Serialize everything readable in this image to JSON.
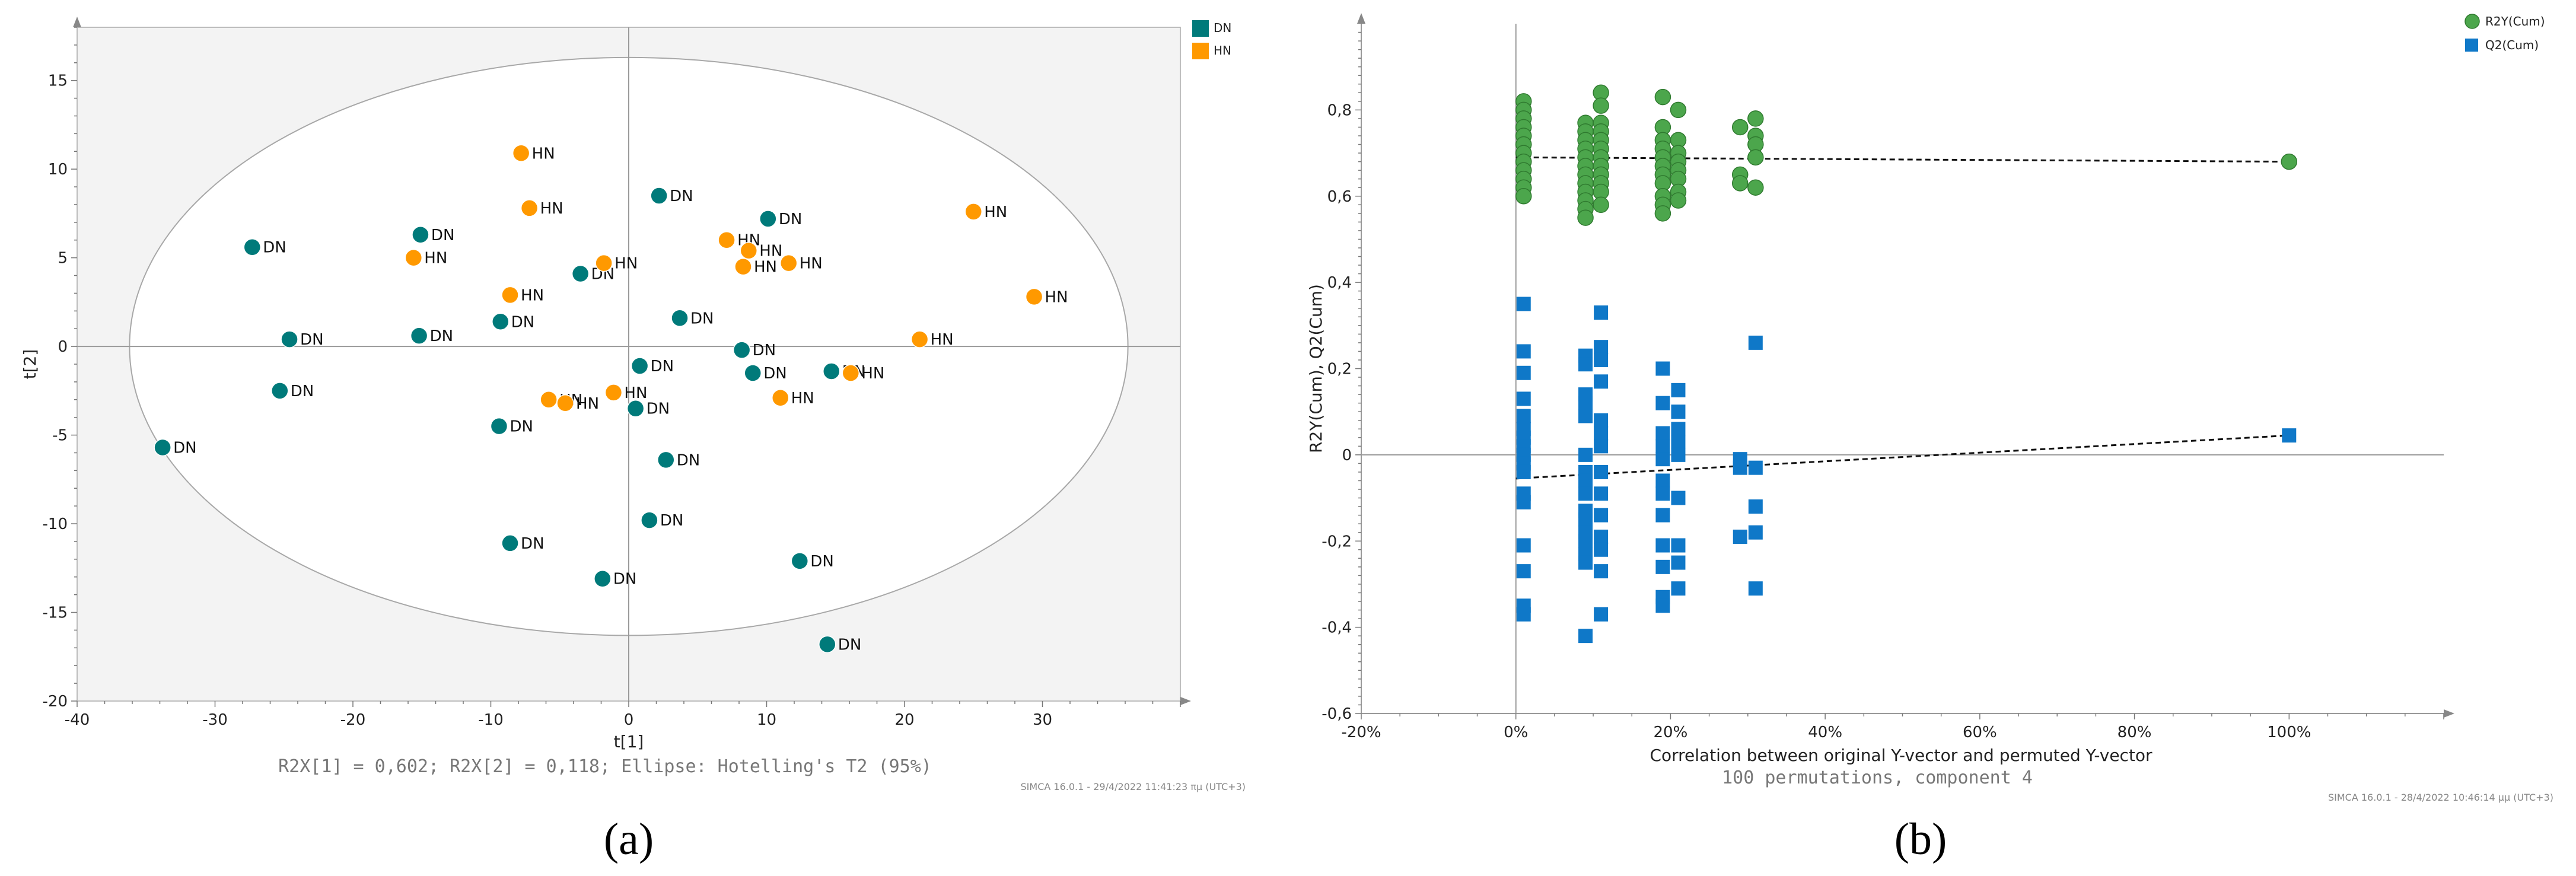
{
  "chart_data": [
    {
      "panel_label": "(a)",
      "type": "scatter",
      "xlabel": "t[1]",
      "ylabel": "t[2]",
      "xlim": [
        -40,
        40
      ],
      "ylim": [
        -20,
        18
      ],
      "xticks": [
        -40,
        -30,
        -20,
        -10,
        0,
        10,
        20,
        30
      ],
      "yticks": [
        -20,
        -15,
        -10,
        -5,
        0,
        5,
        10,
        15
      ],
      "note": "R2X[1] = 0,602; R2X[2] = 0,118; Ellipse: Hotelling's T2 (95%)",
      "stamp": "SIMCA 16.0.1 - 29/4/2022 11:41:23 πμ (UTC+3)",
      "ellipse": {
        "cx": 0,
        "cy": 0,
        "rx": 36.2,
        "ry": 16.3
      },
      "legend": [
        {
          "name": "DN",
          "color": "#007a7a"
        },
        {
          "name": "HN",
          "color": "#ff9900"
        }
      ],
      "series": [
        {
          "name": "DN",
          "color": "#007a7a",
          "points": [
            [
              -27.3,
              5.6
            ],
            [
              -15.1,
              6.3
            ],
            [
              -24.6,
              0.4
            ],
            [
              -15.2,
              0.6
            ],
            [
              -25.3,
              -2.5
            ],
            [
              -33.8,
              -5.7
            ],
            [
              -9.3,
              1.4
            ],
            [
              -9.4,
              -4.5
            ],
            [
              -8.6,
              -11.1
            ],
            [
              -3.5,
              4.1
            ],
            [
              2.2,
              8.5
            ],
            [
              10.1,
              7.2
            ],
            [
              3.7,
              1.6
            ],
            [
              8.2,
              -0.2
            ],
            [
              9.0,
              -1.5
            ],
            [
              0.8,
              -1.1
            ],
            [
              0.5,
              -3.5
            ],
            [
              14.7,
              -1.4
            ],
            [
              2.7,
              -6.4
            ],
            [
              1.5,
              -9.8
            ],
            [
              -1.9,
              -13.1
            ],
            [
              12.4,
              -12.1
            ],
            [
              14.4,
              -16.8
            ]
          ]
        },
        {
          "name": "HN",
          "color": "#ff9900",
          "points": [
            [
              -7.8,
              10.9
            ],
            [
              -7.2,
              7.8
            ],
            [
              -15.6,
              5.0
            ],
            [
              -8.6,
              2.9
            ],
            [
              -1.8,
              4.7
            ],
            [
              7.1,
              6.0
            ],
            [
              8.7,
              5.4
            ],
            [
              8.3,
              4.5
            ],
            [
              11.6,
              4.7
            ],
            [
              25.0,
              7.6
            ],
            [
              29.4,
              2.8
            ],
            [
              21.1,
              0.4
            ],
            [
              16.1,
              -1.5
            ],
            [
              11.0,
              -2.9
            ],
            [
              -5.8,
              -3.0
            ],
            [
              -4.6,
              -3.2
            ],
            [
              -1.1,
              -2.6
            ]
          ]
        }
      ]
    },
    {
      "panel_label": "(b)",
      "type": "scatter",
      "xlabel": "Correlation between original Y-vector and permuted Y-vector",
      "ylabel": "R2Y(Cum), Q2(Cum)",
      "xlim": [
        -0.2,
        1.2
      ],
      "ylim": [
        -0.6,
        1.0
      ],
      "xticks": [
        "-20%",
        "0%",
        "20%",
        "40%",
        "60%",
        "80%",
        "100%"
      ],
      "yticks": [
        "-0,6",
        "-0,4",
        "-0,2",
        "0",
        "0,2",
        "0,4",
        "0,6",
        "0,8"
      ],
      "note": "100 permutations, component 4",
      "stamp": "SIMCA 16.0.1 - 28/4/2022 10:46:14 μμ (UTC+3)",
      "legend": [
        {
          "name": "R2Y(Cum)",
          "color": "#4ca64c",
          "shape": "circle"
        },
        {
          "name": "Q2(Cum)",
          "color": "#0f78c8",
          "shape": "square"
        }
      ],
      "series": [
        {
          "name": "R2Y(Cum)",
          "color": "#4ca64c",
          "shape": "circle",
          "regression": [
            [
              0,
              0.69
            ],
            [
              1.0,
              0.68
            ]
          ],
          "points": [
            [
              0.01,
              0.82
            ],
            [
              0.01,
              0.8
            ],
            [
              0.01,
              0.78
            ],
            [
              0.01,
              0.76
            ],
            [
              0.01,
              0.74
            ],
            [
              0.01,
              0.72
            ],
            [
              0.01,
              0.7
            ],
            [
              0.01,
              0.68
            ],
            [
              0.01,
              0.66
            ],
            [
              0.01,
              0.64
            ],
            [
              0.01,
              0.62
            ],
            [
              0.01,
              0.6
            ],
            [
              0.09,
              0.77
            ],
            [
              0.09,
              0.75
            ],
            [
              0.09,
              0.73
            ],
            [
              0.09,
              0.71
            ],
            [
              0.09,
              0.69
            ],
            [
              0.09,
              0.67
            ],
            [
              0.09,
              0.65
            ],
            [
              0.09,
              0.63
            ],
            [
              0.09,
              0.61
            ],
            [
              0.09,
              0.59
            ],
            [
              0.09,
              0.57
            ],
            [
              0.09,
              0.55
            ],
            [
              0.11,
              0.84
            ],
            [
              0.11,
              0.81
            ],
            [
              0.11,
              0.77
            ],
            [
              0.11,
              0.75
            ],
            [
              0.11,
              0.73
            ],
            [
              0.11,
              0.71
            ],
            [
              0.11,
              0.69
            ],
            [
              0.11,
              0.67
            ],
            [
              0.11,
              0.65
            ],
            [
              0.11,
              0.63
            ],
            [
              0.11,
              0.61
            ],
            [
              0.11,
              0.58
            ],
            [
              0.19,
              0.83
            ],
            [
              0.19,
              0.76
            ],
            [
              0.19,
              0.73
            ],
            [
              0.19,
              0.71
            ],
            [
              0.19,
              0.69
            ],
            [
              0.19,
              0.67
            ],
            [
              0.19,
              0.65
            ],
            [
              0.19,
              0.63
            ],
            [
              0.19,
              0.6
            ],
            [
              0.19,
              0.58
            ],
            [
              0.19,
              0.56
            ],
            [
              0.21,
              0.8
            ],
            [
              0.21,
              0.73
            ],
            [
              0.21,
              0.7
            ],
            [
              0.21,
              0.68
            ],
            [
              0.21,
              0.66
            ],
            [
              0.21,
              0.64
            ],
            [
              0.21,
              0.61
            ],
            [
              0.21,
              0.59
            ],
            [
              0.29,
              0.76
            ],
            [
              0.29,
              0.65
            ],
            [
              0.29,
              0.63
            ],
            [
              0.31,
              0.78
            ],
            [
              0.31,
              0.74
            ],
            [
              0.31,
              0.72
            ],
            [
              0.31,
              0.69
            ],
            [
              0.31,
              0.62
            ],
            [
              1.0,
              0.68
            ]
          ]
        },
        {
          "name": "Q2(Cum)",
          "color": "#0f78c8",
          "shape": "square",
          "regression": [
            [
              0,
              -0.055
            ],
            [
              1.0,
              0.045
            ]
          ],
          "points": [
            [
              0.01,
              0.35
            ],
            [
              0.01,
              0.24
            ],
            [
              0.01,
              0.19
            ],
            [
              0.01,
              0.13
            ],
            [
              0.01,
              0.09
            ],
            [
              0.01,
              0.06
            ],
            [
              0.01,
              0.04
            ],
            [
              0.01,
              0.02
            ],
            [
              0.01,
              0.0
            ],
            [
              0.01,
              -0.02
            ],
            [
              0.01,
              -0.04
            ],
            [
              0.01,
              -0.09
            ],
            [
              0.01,
              -0.11
            ],
            [
              0.01,
              -0.21
            ],
            [
              0.01,
              -0.27
            ],
            [
              0.01,
              -0.35
            ],
            [
              0.01,
              -0.37
            ],
            [
              0.09,
              0.23
            ],
            [
              0.09,
              0.21
            ],
            [
              0.09,
              0.14
            ],
            [
              0.09,
              0.12
            ],
            [
              0.09,
              0.09
            ],
            [
              0.09,
              0.0
            ],
            [
              0.09,
              -0.04
            ],
            [
              0.09,
              -0.06
            ],
            [
              0.09,
              -0.09
            ],
            [
              0.09,
              -0.13
            ],
            [
              0.09,
              -0.15
            ],
            [
              0.09,
              -0.18
            ],
            [
              0.09,
              -0.2
            ],
            [
              0.09,
              -0.23
            ],
            [
              0.09,
              -0.25
            ],
            [
              0.09,
              -0.42
            ],
            [
              0.11,
              0.33
            ],
            [
              0.11,
              0.25
            ],
            [
              0.11,
              0.22
            ],
            [
              0.11,
              0.17
            ],
            [
              0.11,
              0.08
            ],
            [
              0.11,
              0.05
            ],
            [
              0.11,
              0.02
            ],
            [
              0.11,
              -0.04
            ],
            [
              0.11,
              -0.09
            ],
            [
              0.11,
              -0.14
            ],
            [
              0.11,
              -0.19
            ],
            [
              0.11,
              -0.22
            ],
            [
              0.11,
              -0.27
            ],
            [
              0.11,
              -0.37
            ],
            [
              0.19,
              0.2
            ],
            [
              0.19,
              0.12
            ],
            [
              0.19,
              0.05
            ],
            [
              0.19,
              0.02
            ],
            [
              0.19,
              -0.01
            ],
            [
              0.19,
              -0.06
            ],
            [
              0.19,
              -0.09
            ],
            [
              0.19,
              -0.14
            ],
            [
              0.19,
              -0.21
            ],
            [
              0.19,
              -0.26
            ],
            [
              0.19,
              -0.33
            ],
            [
              0.19,
              -0.35
            ],
            [
              0.21,
              0.15
            ],
            [
              0.21,
              0.1
            ],
            [
              0.21,
              0.06
            ],
            [
              0.21,
              0.03
            ],
            [
              0.21,
              0.0
            ],
            [
              0.21,
              -0.1
            ],
            [
              0.21,
              -0.21
            ],
            [
              0.21,
              -0.25
            ],
            [
              0.21,
              -0.31
            ],
            [
              0.29,
              -0.01
            ],
            [
              0.29,
              -0.03
            ],
            [
              0.29,
              -0.19
            ],
            [
              0.31,
              0.26
            ],
            [
              0.31,
              -0.03
            ],
            [
              0.31,
              -0.12
            ],
            [
              0.31,
              -0.18
            ],
            [
              0.31,
              -0.31
            ],
            [
              1.0,
              0.045
            ]
          ]
        }
      ]
    }
  ]
}
